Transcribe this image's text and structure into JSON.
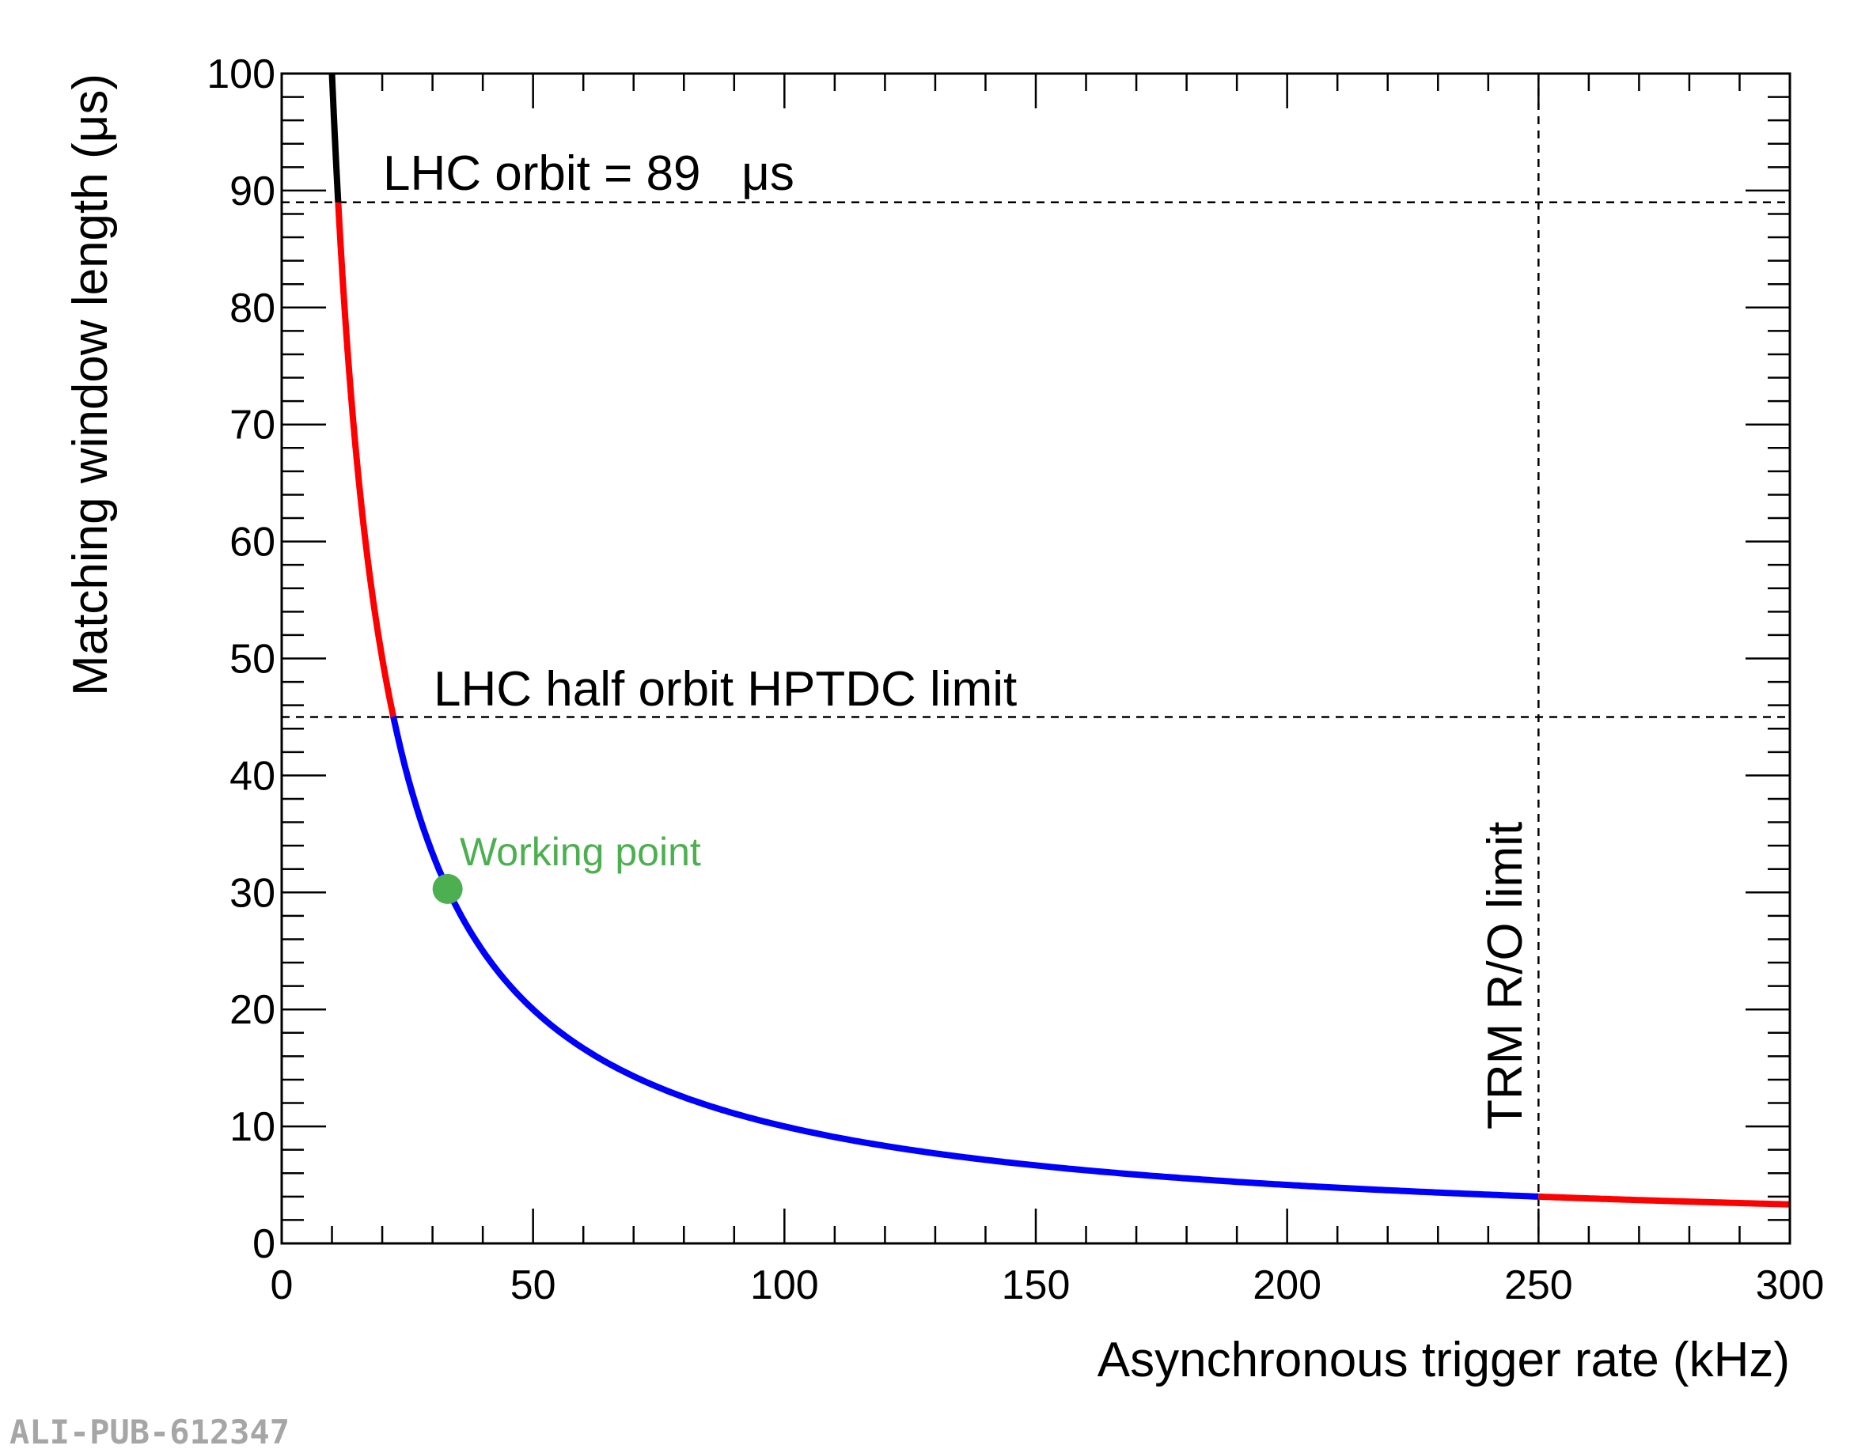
{
  "chart_data": {
    "type": "line",
    "xlabel": "Asynchronous trigger rate (kHz)",
    "ylabel": "Matching window length (μs)",
    "xlim": [
      0,
      300
    ],
    "ylim": [
      0,
      100
    ],
    "x_ticks": [
      0,
      50,
      100,
      150,
      200,
      250,
      300
    ],
    "y_ticks": [
      0,
      10,
      20,
      30,
      40,
      50,
      60,
      70,
      80,
      90,
      100
    ],
    "grid": false,
    "function": "y = 1000 / x",
    "curve_segments": [
      {
        "x_range": [
          10,
          11.24
        ],
        "color": "#000000"
      },
      {
        "x_range": [
          11.24,
          22.2
        ],
        "color": "#ff0000"
      },
      {
        "x_range": [
          22.2,
          250
        ],
        "color": "#0000ff"
      },
      {
        "x_range": [
          250,
          300
        ],
        "color": "#ff0000"
      }
    ],
    "reference_lines": [
      {
        "orientation": "horizontal",
        "y": 89,
        "style": "dashed"
      },
      {
        "orientation": "horizontal",
        "y": 45,
        "style": "dashed"
      },
      {
        "orientation": "vertical",
        "x": 250,
        "style": "dashed"
      }
    ],
    "annotations": [
      {
        "text": "LHC orbit = 89   μs"
      },
      {
        "text": "LHC half orbit HPTDC limit"
      },
      {
        "text": "TRM R/O limit"
      },
      {
        "text": "Working point",
        "color": "#4caf50"
      }
    ],
    "working_point": {
      "x": 33,
      "y": 30.3,
      "color": "#4caf50"
    }
  },
  "watermark": "ALI-PUB-612347"
}
